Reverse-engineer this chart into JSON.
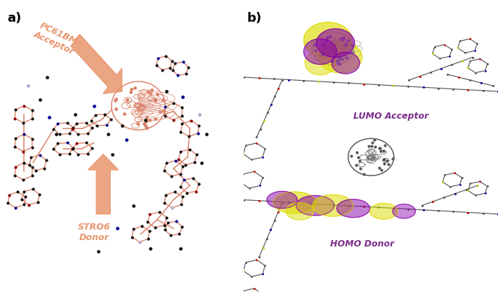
{
  "figsize": [
    7.09,
    4.23
  ],
  "dpi": 100,
  "background_color": "#ffffff",
  "panel_a_label": "a)",
  "panel_b_label": "b)",
  "label_fontsize": 13,
  "label_fontweight": "bold",
  "arrow1_text": "PC61BM\nAcceptor",
  "arrow2_text": "STRO6\nDonor",
  "arrow_color": "#E8956D",
  "arrow_fontsize": 9,
  "arrow_fontweight": "bold",
  "lumo_label": "LUMO Acceptor",
  "homo_label": "HOMO Donor",
  "orbital_label_color": "#7B2D8B",
  "orbital_label_fontsize": 9,
  "salmon": "#D9826A",
  "dark_grey": "#444444",
  "mid_grey": "#888888",
  "light_grey": "#AAAAAA",
  "black": "#111111",
  "dark_blue": "#00008B",
  "dark_red": "#8B0000",
  "light_purple": "#AAAACC",
  "yellow_orbital": "#DDDD00",
  "purple_orbital": "#8800AA"
}
